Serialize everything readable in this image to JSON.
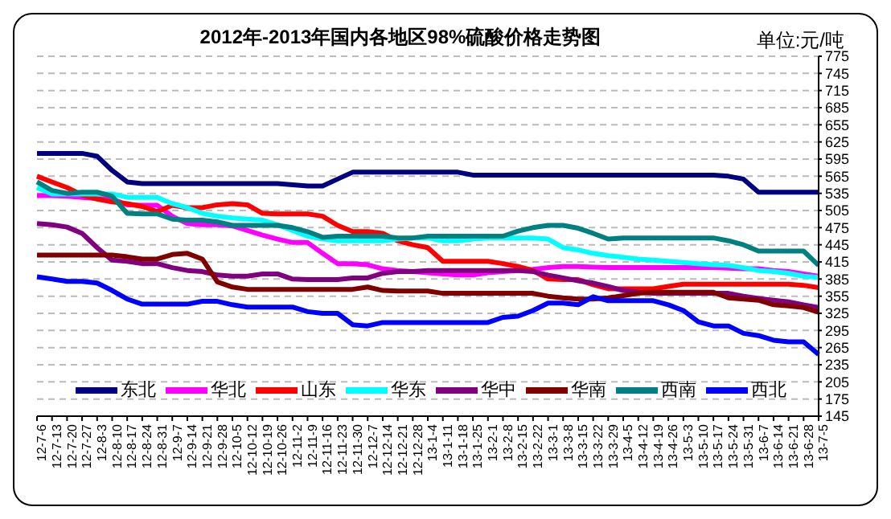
{
  "chart_data": {
    "type": "line",
    "title": "2012年-2013年国内各地区98%硫酸价格走势图",
    "annotations": [
      "单位:元/吨"
    ],
    "categories": [
      "12-7-6",
      "12-7-13",
      "12-7-20",
      "12-7-27",
      "12-8-3",
      "12-8-10",
      "12-8-17",
      "12-8-24",
      "12-8-31",
      "12-9-7",
      "12-9-14",
      "12-9-21",
      "12-9-28",
      "12-10-5",
      "12-10-12",
      "12-10-19",
      "12-10-26",
      "12-11-2",
      "12-11-9",
      "12-11-16",
      "12-11-23",
      "12-11-30",
      "12-12-7",
      "12-12-14",
      "12-12-21",
      "12-12-28",
      "13-1-4",
      "13-1-11",
      "13-1-18",
      "13-1-25",
      "13-2-1",
      "13-2-8",
      "13-2-15",
      "13-2-22",
      "13-3-1",
      "13-3-8",
      "13-3-15",
      "13-3-22",
      "13-3-29",
      "13-4-5",
      "13-4-12",
      "13-4-19",
      "13-4-26",
      "13-5-3",
      "13-5-10",
      "13-5-17",
      "13-5-24",
      "13-5-31",
      "13-6-7",
      "13-6-14",
      "13-6-21",
      "13-6-28",
      "13-7-5"
    ],
    "series": [
      {
        "name": "东北",
        "color": "#000080",
        "values": [
          605,
          605,
          605,
          605,
          600,
          575,
          555,
          552,
          552,
          552,
          552,
          552,
          552,
          552,
          552,
          552,
          552,
          550,
          548,
          548,
          560,
          572,
          572,
          572,
          572,
          572,
          572,
          572,
          572,
          567,
          567,
          567,
          567,
          567,
          567,
          567,
          567,
          567,
          567,
          567,
          567,
          567,
          567,
          567,
          567,
          567,
          565,
          560,
          537,
          537,
          537,
          537,
          537
        ]
      },
      {
        "name": "华北",
        "color": "#ff00ff",
        "values": [
          531,
          531,
          530,
          528,
          526,
          525,
          515,
          514,
          514,
          495,
          482,
          480,
          480,
          478,
          470,
          462,
          455,
          449,
          449,
          430,
          412,
          412,
          410,
          403,
          400,
          398,
          396,
          394,
          392,
          392,
          396,
          398,
          400,
          402,
          405,
          407,
          407,
          406,
          405,
          405,
          405,
          405,
          405,
          405,
          405,
          405,
          404,
          403,
          403,
          400,
          398,
          394,
          390
        ]
      },
      {
        "name": "山东",
        "color": "#ff0000",
        "values": [
          565,
          555,
          545,
          532,
          525,
          520,
          517,
          512,
          503,
          514,
          510,
          510,
          515,
          517,
          515,
          500,
          499,
          499,
          499,
          495,
          479,
          468,
          468,
          465,
          452,
          445,
          440,
          416,
          416,
          416,
          416,
          412,
          407,
          400,
          385,
          384,
          384,
          375,
          368,
          368,
          368,
          368,
          372,
          376,
          376,
          376,
          376,
          376,
          376,
          376,
          376,
          374,
          370
        ]
      },
      {
        "name": "华东",
        "color": "#00ffff",
        "values": [
          545,
          534,
          534,
          534,
          534,
          534,
          528,
          528,
          528,
          517,
          510,
          500,
          495,
          492,
          490,
          488,
          480,
          470,
          460,
          455,
          452,
          452,
          452,
          452,
          455,
          457,
          457,
          452,
          452,
          455,
          457,
          457,
          457,
          457,
          455,
          440,
          436,
          430,
          426,
          423,
          420,
          418,
          416,
          414,
          412,
          410,
          409,
          405,
          400,
          398,
          395,
          390,
          388
        ]
      },
      {
        "name": "华中",
        "color": "#800080",
        "values": [
          482,
          480,
          476,
          465,
          440,
          418,
          416,
          412,
          412,
          405,
          400,
          398,
          392,
          390,
          390,
          394,
          394,
          385,
          384,
          384,
          384,
          387,
          387,
          395,
          398,
          398,
          400,
          400,
          400,
          400,
          400,
          400,
          400,
          398,
          392,
          387,
          382,
          378,
          372,
          365,
          362,
          360,
          360,
          360,
          360,
          360,
          360,
          355,
          351,
          348,
          345,
          340,
          335
        ]
      },
      {
        "name": "华南",
        "color": "#800000",
        "values": [
          427,
          427,
          427,
          427,
          427,
          427,
          424,
          420,
          420,
          428,
          430,
          420,
          380,
          371,
          367,
          367,
          367,
          367,
          367,
          367,
          367,
          367,
          371,
          365,
          364,
          364,
          364,
          360,
          360,
          360,
          360,
          360,
          360,
          360,
          355,
          352,
          350,
          350,
          352,
          356,
          360,
          362,
          362,
          362,
          362,
          362,
          352,
          350,
          348,
          340,
          338,
          335,
          327
        ]
      },
      {
        "name": "西南",
        "color": "#008080",
        "values": [
          555,
          540,
          535,
          537,
          537,
          530,
          500,
          499,
          499,
          490,
          488,
          488,
          485,
          479,
          479,
          479,
          479,
          475,
          468,
          458,
          460,
          460,
          460,
          460,
          457,
          457,
          460,
          460,
          460,
          460,
          460,
          460,
          469,
          475,
          479,
          479,
          474,
          465,
          455,
          457,
          457,
          457,
          457,
          457,
          457,
          457,
          452,
          445,
          434,
          434,
          434,
          434,
          409
        ]
      },
      {
        "name": "西北",
        "color": "#0000ff",
        "values": [
          389,
          385,
          381,
          381,
          378,
          365,
          350,
          341,
          341,
          341,
          341,
          346,
          346,
          340,
          336,
          336,
          336,
          336,
          328,
          325,
          325,
          305,
          303,
          309,
          309,
          309,
          309,
          309,
          309,
          309,
          309,
          318,
          320,
          330,
          343,
          343,
          340,
          354,
          347,
          347,
          347,
          347,
          340,
          330,
          310,
          303,
          303,
          290,
          286,
          278,
          275,
          275,
          253
        ]
      }
    ],
    "ylim": [
      145,
      775
    ],
    "yticks": [
      145,
      175,
      205,
      235,
      265,
      295,
      325,
      355,
      385,
      415,
      445,
      475,
      505,
      535,
      565,
      595,
      625,
      655,
      685,
      715,
      745,
      775
    ],
    "grid": "y",
    "legend": "bottom"
  }
}
